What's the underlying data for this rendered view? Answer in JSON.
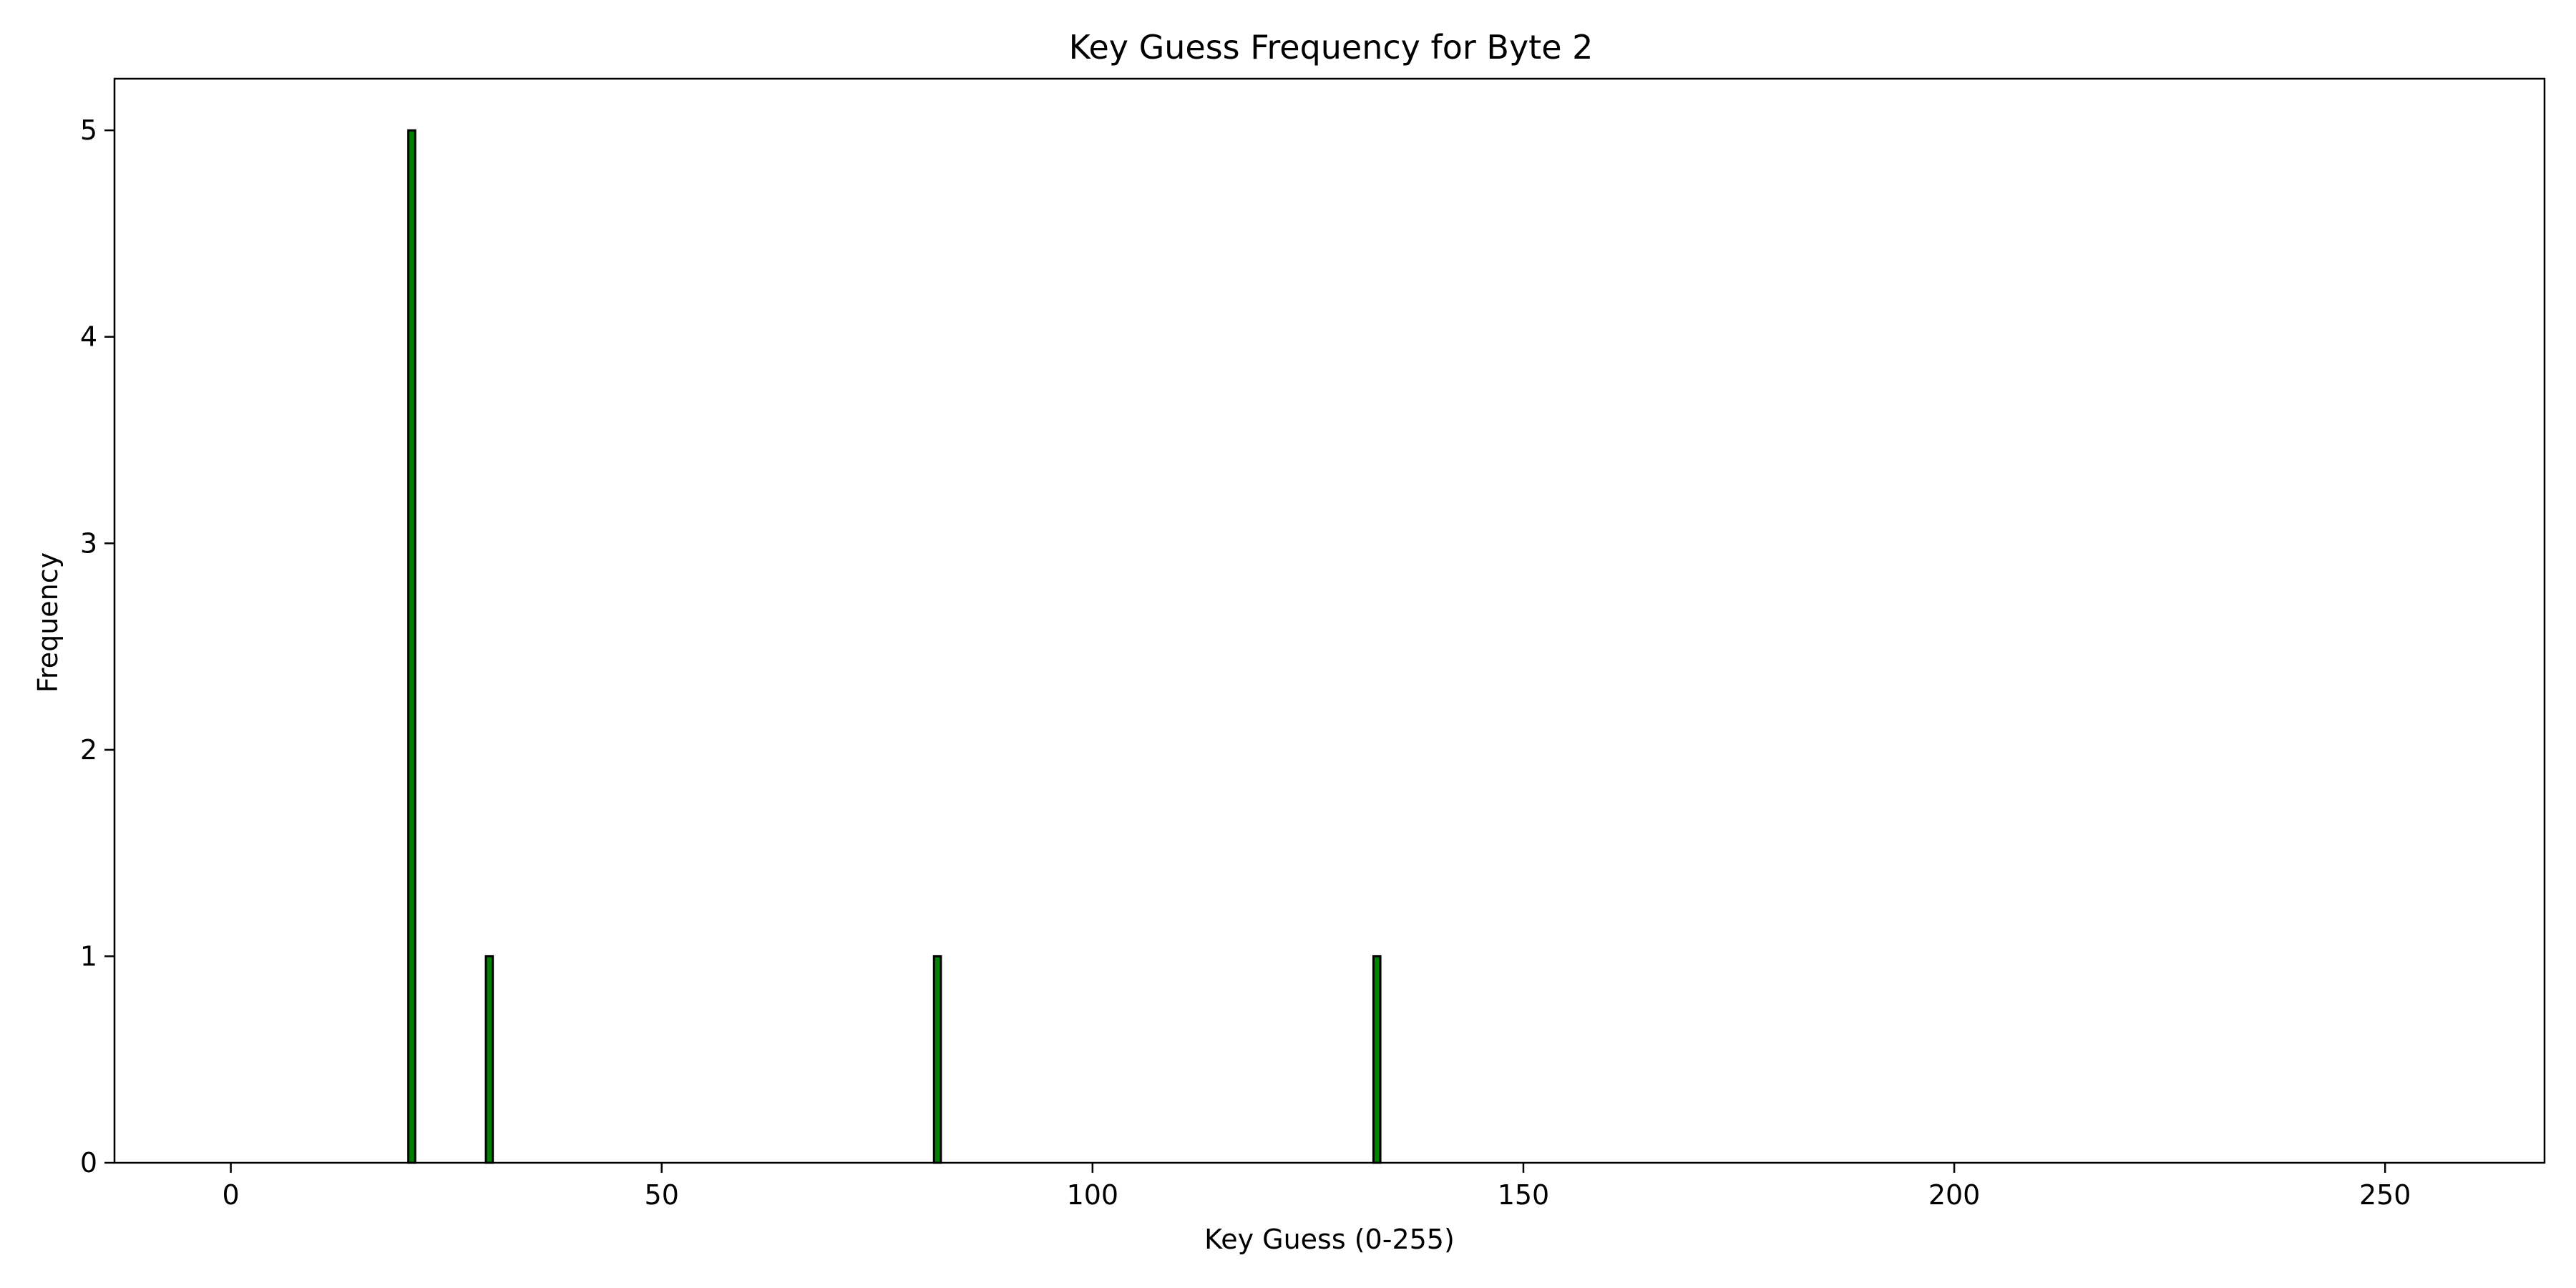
{
  "chart_data": {
    "type": "bar",
    "title": "Key Guess Frequency for Byte 2",
    "xlabel": "Key Guess (0-255)",
    "ylabel": "Frequency",
    "x_domain": [
      0,
      255
    ],
    "xlim": [
      -13.5,
      268.5
    ],
    "ylim": [
      0,
      5.25
    ],
    "xticks": [
      0,
      50,
      100,
      150,
      200,
      250
    ],
    "yticks": [
      0,
      1,
      2,
      3,
      4,
      5
    ],
    "bar_color": "#008000",
    "edge_color": "#000000",
    "nonzero": [
      {
        "x": 21,
        "y": 5
      },
      {
        "x": 30,
        "y": 1
      },
      {
        "x": 82,
        "y": 1
      },
      {
        "x": 133,
        "y": 1
      }
    ],
    "grid": false,
    "legend": "none"
  }
}
